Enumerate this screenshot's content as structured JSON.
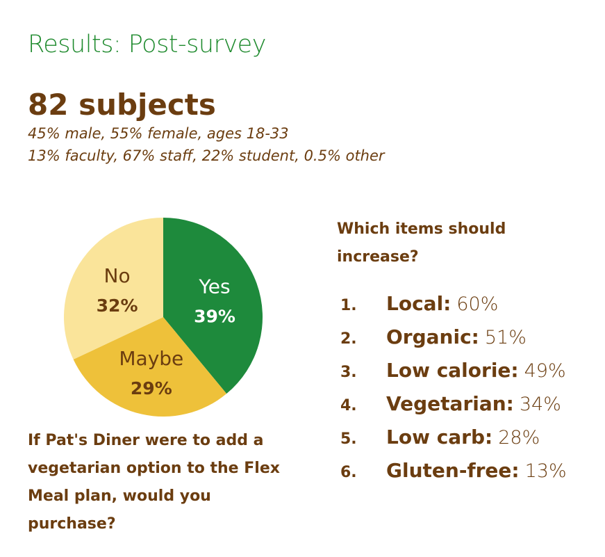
{
  "title": "Results: Post-survey",
  "subjects": "82 subjects",
  "demographics": [
    "45% male, 55% female, ages 18-33",
    "13% faculty, 67% staff, 22% student, 0.5% other"
  ],
  "chart_data": [
    {
      "type": "pie",
      "labels": [
        "Yes",
        "Maybe",
        "No"
      ],
      "values": [
        39,
        29,
        32
      ],
      "value_labels": [
        "39%",
        "29%",
        "32%"
      ],
      "colors": [
        "#1e8a3c",
        "#eec13a",
        "#fae49a"
      ],
      "title": "If Pat's Diner were to add a vegetarian option to the Flex Meal plan, would you purchase?"
    },
    {
      "type": "table",
      "title": "Which items should increase?",
      "rows": [
        {
          "rank": "1.",
          "label": "Local:",
          "value": "60%"
        },
        {
          "rank": "2.",
          "label": "Organic:",
          "value": "51%"
        },
        {
          "rank": "3.",
          "label": "Low calorie:",
          "value": "49%"
        },
        {
          "rank": "4.",
          "label": "Vegetarian:",
          "value": "34%"
        },
        {
          "rank": "5.",
          "label": "Low carb:",
          "value": "28%"
        },
        {
          "rank": "6.",
          "label": "Gluten-free:",
          "value": "13%"
        }
      ]
    }
  ]
}
